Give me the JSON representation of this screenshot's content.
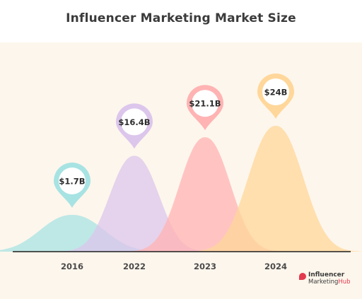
{
  "chart_data": {
    "type": "area",
    "title": "Influencer Marketing Market Size",
    "categories": [
      "2016",
      "2022",
      "2023",
      "2024"
    ],
    "values": [
      1.7,
      16.4,
      21.1,
      24
    ],
    "value_labels": [
      "$1.7B",
      "$16.4B",
      "$21.1B",
      "$24B"
    ],
    "unit": "$B",
    "xlabel": "",
    "ylabel": "",
    "grid": false,
    "colors": [
      "#a7e3e3",
      "#dcc6ec",
      "#ffb3b3",
      "#ffd79a"
    ]
  },
  "brand": {
    "line1": "Influencer",
    "line2_a": "Marketing",
    "line2_b": "Hub",
    "color": "#e23a4f"
  }
}
